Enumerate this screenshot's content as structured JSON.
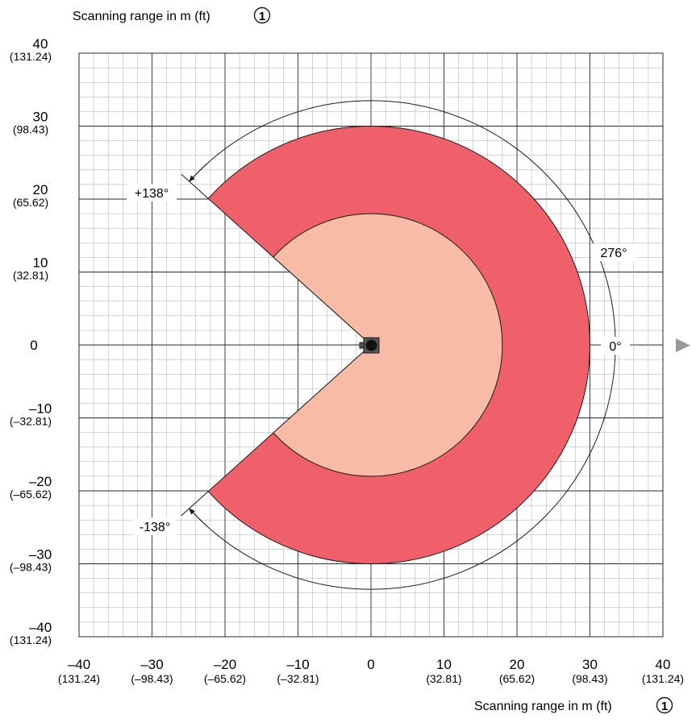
{
  "axis_title_top": "Scanning range in m (ft)",
  "axis_title_bottom": "Scanning range in m (ft)",
  "callout_number": "1",
  "y_ticks": [
    {
      "value": 40,
      "label": "40",
      "sub": "(131.24)"
    },
    {
      "value": 30,
      "label": "30",
      "sub": "(98.43)"
    },
    {
      "value": 20,
      "label": "20",
      "sub": "(65.62)"
    },
    {
      "value": 10,
      "label": "10",
      "sub": "(32.81)"
    },
    {
      "value": 0,
      "label": "0",
      "sub": ""
    },
    {
      "value": -10,
      "label": "–10",
      "sub": "(–32.81)"
    },
    {
      "value": -20,
      "label": "–20",
      "sub": "(–65.62)"
    },
    {
      "value": -30,
      "label": "–30",
      "sub": "(–98.43)"
    },
    {
      "value": -40,
      "label": "–40",
      "sub": "(131.24)"
    }
  ],
  "x_ticks": [
    {
      "value": -40,
      "label": "–40",
      "sub": "(131.24)"
    },
    {
      "value": -30,
      "label": "–30",
      "sub": "(–98.43)"
    },
    {
      "value": -20,
      "label": "–20",
      "sub": "(–65.62)"
    },
    {
      "value": -10,
      "label": "–10",
      "sub": "(–32.81)"
    },
    {
      "value": 0,
      "label": "0",
      "sub": ""
    },
    {
      "value": 10,
      "label": "10",
      "sub": "(32.81)"
    },
    {
      "value": 20,
      "label": "20",
      "sub": "(65.62)"
    },
    {
      "value": 30,
      "label": "30",
      "sub": "(98.43)"
    },
    {
      "value": 40,
      "label": "40",
      "sub": "(131.24)"
    }
  ],
  "angles": {
    "upper": "+138°",
    "lower": "-138°",
    "total": "276°",
    "zero": "0°"
  },
  "sectors": {
    "half_angle_deg": 138,
    "inner_radius_m": 18,
    "outer_radius_m": 30,
    "arc_radius_m": 33.5,
    "inner_color": "#f8bba5",
    "outer_color": "#f0606a"
  },
  "extent_m": 40
}
